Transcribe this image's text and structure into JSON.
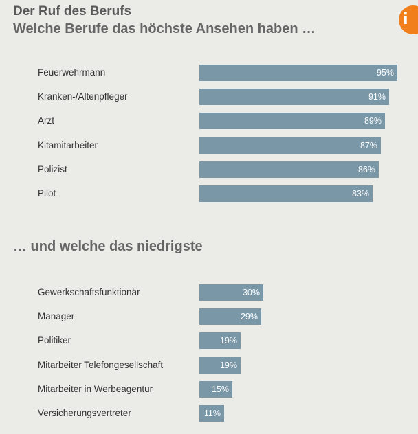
{
  "chart_data": [
    {
      "type": "bar",
      "orientation": "horizontal",
      "title": "Der Ruf des Berufs",
      "subtitle": "Welche Berufe das höchste Ansehen haben …",
      "categories": [
        "Feuerwehrmann",
        "Kranken-/Altenpfleger",
        "Arzt",
        "Kitamitarbeiter",
        "Polizist",
        "Pilot"
      ],
      "values": [
        95,
        91,
        89,
        87,
        86,
        83
      ],
      "value_labels": [
        "95%",
        "91%",
        "89%",
        "87%",
        "86%",
        "83%"
      ],
      "unit": "%",
      "xlim": [
        0,
        100
      ]
    },
    {
      "type": "bar",
      "orientation": "horizontal",
      "title": "… und welche das niedrigste",
      "categories": [
        "Gewerkschaftsfunktionär",
        "Manager",
        "Politiker",
        "Mitarbeiter Telefongesellschaft",
        "Mitarbeiter in Werbeagentur",
        "Versicherungsvertreter"
      ],
      "values": [
        30,
        29,
        19,
        19,
        15,
        11
      ],
      "value_labels": [
        "30%",
        "29%",
        "19%",
        "19%",
        "15%",
        "11%"
      ],
      "unit": "%",
      "xlim": [
        0,
        100
      ]
    }
  ],
  "colors": {
    "bar": "#7a97a8",
    "accent": "#f07f1c",
    "background": "#ebebe8"
  },
  "badge_icon": "info-icon"
}
